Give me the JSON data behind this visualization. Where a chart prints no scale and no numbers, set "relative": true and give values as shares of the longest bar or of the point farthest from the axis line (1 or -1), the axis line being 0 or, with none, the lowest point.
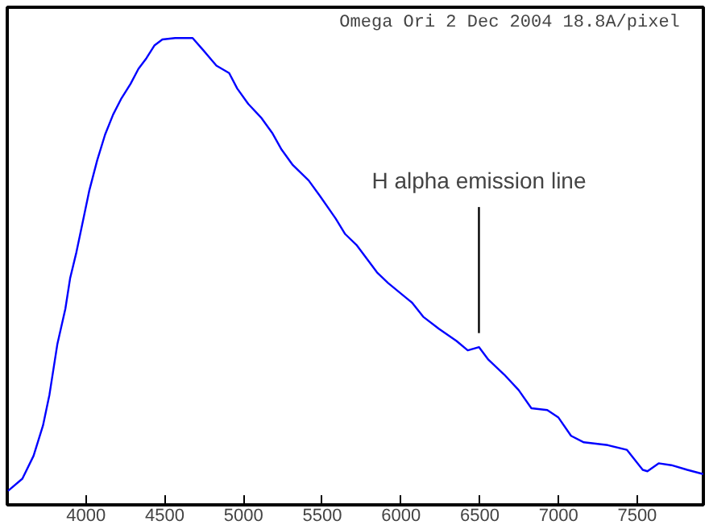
{
  "chart_data": {
    "type": "line",
    "title": "Omega Ori  2 Dec 2004 18.8A/pixel",
    "relative": true,
    "x": [
      3505,
      3596,
      3667,
      3727,
      3768,
      3818,
      3869,
      3899,
      3939,
      3980,
      4020,
      4071,
      4121,
      4172,
      4222,
      4283,
      4333,
      4384,
      4434,
      4485,
      4566,
      4677,
      4737,
      4828,
      4909,
      4960,
      5030,
      5111,
      5182,
      5242,
      5313,
      5414,
      5485,
      5586,
      5646,
      5717,
      5848,
      5919,
      6071,
      6141,
      6242,
      6353,
      6424,
      6495,
      6555,
      6656,
      6747,
      6828,
      6929,
      7000,
      7080,
      7161,
      7313,
      7434,
      7535,
      7565,
      7636,
      7717,
      7818,
      7919
    ],
    "series": [
      {
        "color": "#0000ff",
        "values": [
          0.03,
          0.056,
          0.105,
          0.17,
          0.236,
          0.344,
          0.42,
          0.485,
          0.541,
          0.607,
          0.672,
          0.738,
          0.793,
          0.836,
          0.869,
          0.902,
          0.934,
          0.957,
          0.984,
          0.997,
          1,
          1,
          0.977,
          0.941,
          0.925,
          0.892,
          0.859,
          0.83,
          0.797,
          0.761,
          0.728,
          0.695,
          0.662,
          0.613,
          0.58,
          0.557,
          0.498,
          0.475,
          0.433,
          0.403,
          0.377,
          0.351,
          0.331,
          0.338,
          0.311,
          0.279,
          0.246,
          0.207,
          0.203,
          0.187,
          0.148,
          0.134,
          0.128,
          0.118,
          0.075,
          0.072,
          0.089,
          0.085,
          0.075,
          0.066
        ]
      }
    ],
    "xlim": [
      3500,
      7920
    ],
    "xticks": [
      4000,
      4500,
      5000,
      5500,
      6000,
      6500,
      7000,
      7500
    ],
    "annotations": [
      {
        "text": "H alpha emission line",
        "x": 6495,
        "y": 0.338
      }
    ],
    "marker": "none",
    "line_style": "solid"
  }
}
